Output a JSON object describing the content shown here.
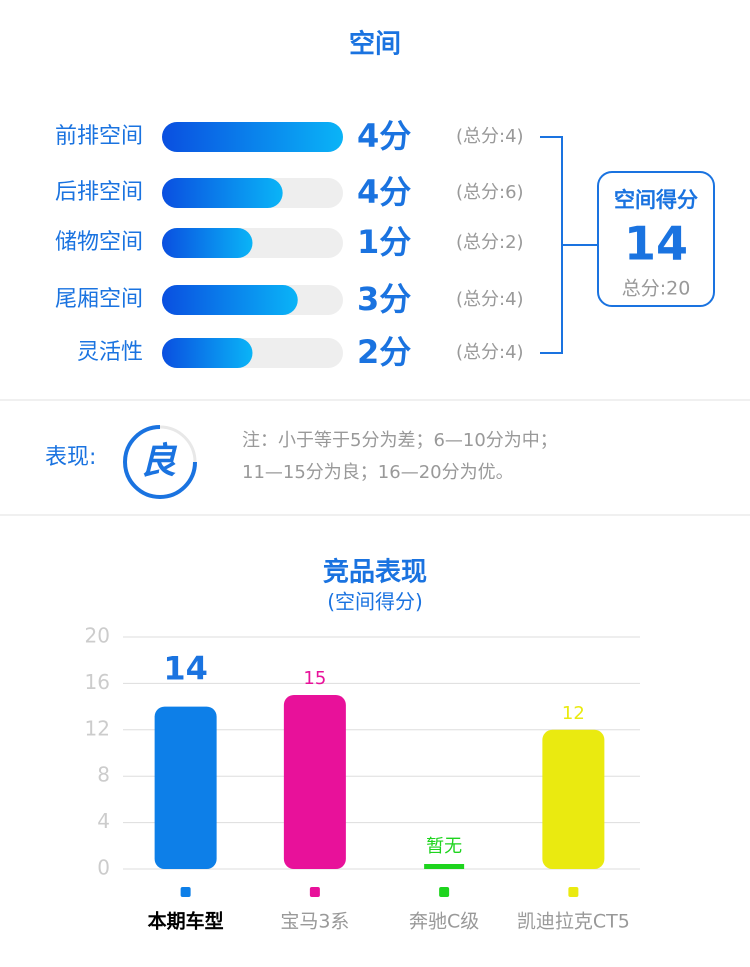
{
  "space": {
    "title": "空间",
    "rows": [
      {
        "label": "前排空间",
        "score": 4,
        "score_label": "4分",
        "total": 4,
        "total_label": "(总分:4)"
      },
      {
        "label": "后排空间",
        "score": 4,
        "score_label": "4分",
        "total": 6,
        "total_label": "(总分:6)"
      },
      {
        "label": "储物空间",
        "score": 1,
        "score_label": "1分",
        "total": 2,
        "total_label": "(总分:2)"
      },
      {
        "label": "尾厢空间",
        "score": 3,
        "score_label": "3分",
        "total": 4,
        "total_label": "(总分:4)"
      },
      {
        "label": "灵活性",
        "score": 2,
        "score_label": "2分",
        "total": 4,
        "total_label": "(总分:4)"
      }
    ],
    "summary": {
      "title": "空间得分",
      "score": "14",
      "total": "总分:20"
    }
  },
  "performance": {
    "label": "表现:",
    "grade": "良",
    "note": [
      "注：小于等于5分为差；6—10分为中；",
      "11—15分为良；16—20分为优。"
    ]
  },
  "chart_data": {
    "type": "bar",
    "title": "竞品表现",
    "subtitle": "(空间得分)",
    "categories": [
      "本期车型",
      "宝马3系",
      "奔驰C级",
      "凯迪拉克CT5"
    ],
    "values": [
      14,
      15,
      null,
      12
    ],
    "value_labels": [
      "14",
      "15",
      "暂无",
      "12"
    ],
    "colors": [
      "#0d7fe8",
      "#e8119a",
      "#1ed41e",
      "#eaea10"
    ],
    "ylim": [
      0,
      20
    ],
    "yticks": [
      0,
      4,
      8,
      12,
      16,
      20
    ],
    "grid": true
  }
}
